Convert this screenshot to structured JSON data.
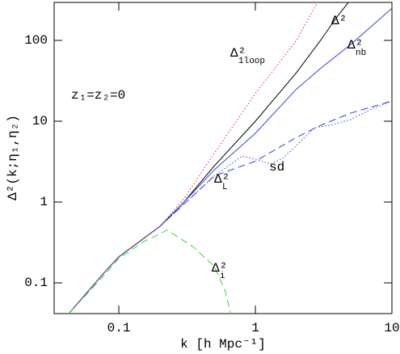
{
  "chart_data": {
    "type": "line",
    "log_x": true,
    "log_y": true,
    "x_label": "k [h Mpc⁻¹]",
    "y_label": "Δ²(k;η₁,η₂)",
    "xlim": [
      0.0336,
      10
    ],
    "ylim": [
      0.0417,
      295
    ],
    "xticks": [
      0.1,
      1,
      10
    ],
    "yticks": [
      0.1,
      1,
      10,
      100
    ],
    "annotation": "z₁=z₂=0",
    "series": [
      {
        "label": {
          "main": "Δ²",
          "sub": "L"
        },
        "color": "#3344dd",
        "style": "dashed",
        "x": [
          0.043,
          0.08,
          0.1,
          0.2,
          0.5,
          1,
          2,
          3,
          5,
          10
        ],
        "values": [
          0.0417,
          0.14,
          0.21,
          0.5,
          2.1,
          3.2,
          6.3,
          8.9,
          12.6,
          17.8
        ]
      },
      {
        "label": {
          "main": "sd",
          "sub": null
        },
        "color": "#3344dd",
        "style": "dotted",
        "x": [
          0.043,
          0.08,
          0.1,
          0.2,
          0.5,
          0.8,
          1,
          1.3,
          1.6,
          2,
          2.7,
          3.5,
          5,
          7,
          10
        ],
        "values": [
          0.0417,
          0.14,
          0.21,
          0.5,
          2.1,
          3.7,
          3.4,
          2.95,
          3.5,
          5,
          8.3,
          8.9,
          10.5,
          14,
          17.8
        ]
      },
      {
        "label": {
          "main": "Δ²",
          "sub": null
        },
        "color": "#000000",
        "style": "solid",
        "x": [
          0.043,
          0.08,
          0.1,
          0.2,
          0.3,
          0.5,
          1,
          2,
          3,
          4,
          4.8
        ],
        "values": [
          0.0417,
          0.14,
          0.21,
          0.5,
          1.0,
          2.8,
          10,
          40,
          100,
          200,
          295
        ]
      },
      {
        "label": {
          "main": "Δ²",
          "sub": "nb"
        },
        "color": "#3344dd",
        "style": "solid",
        "x": [
          0.043,
          0.08,
          0.1,
          0.2,
          0.3,
          0.5,
          1,
          2,
          3,
          5,
          10
        ],
        "values": [
          0.0417,
          0.14,
          0.21,
          0.5,
          1.0,
          2.5,
          7.1,
          25,
          45,
          89,
          250
        ]
      },
      {
        "label": {
          "main": "Δ²",
          "sub": "1loop"
        },
        "color": "#ee2222",
        "style": "dotted",
        "x": [
          0.043,
          0.08,
          0.1,
          0.2,
          0.3,
          0.5,
          1,
          2,
          2.85
        ],
        "values": [
          0.0417,
          0.14,
          0.21,
          0.5,
          1.1,
          4,
          22,
          100,
          295
        ]
      },
      {
        "label": {
          "main": "Δ²",
          "sub": "i"
        },
        "color": "#33dd33",
        "style": "dashed",
        "x": [
          0.043,
          0.08,
          0.1,
          0.15,
          0.226,
          0.35,
          0.5,
          0.6,
          0.66
        ],
        "values": [
          0.0417,
          0.13,
          0.2,
          0.32,
          0.45,
          0.28,
          0.16,
          0.08,
          0.0417
        ]
      }
    ]
  }
}
